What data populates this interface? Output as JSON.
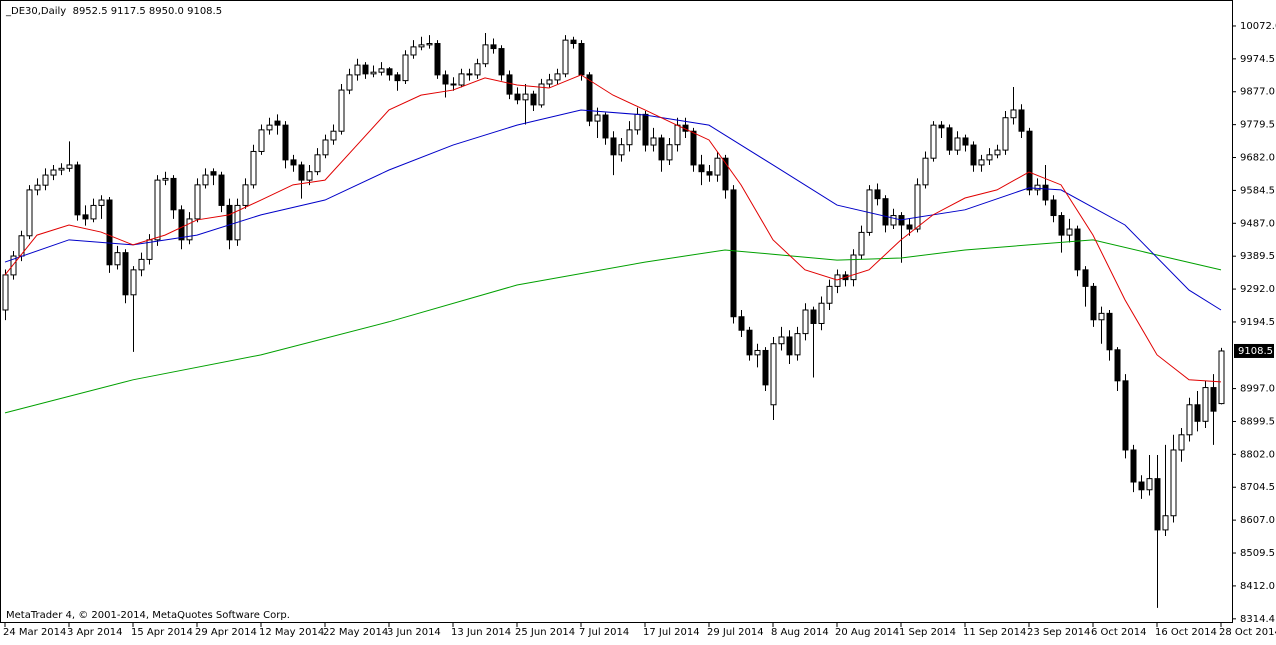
{
  "chart_data": {
    "type": "candlestick",
    "header": "_DE30,Daily  8952.5 9117.5 8950.0 9108.5",
    "footer": "MetaTrader 4, © 2001-2014, MetaQuotes Software Corp.",
    "ylim": [
      8305,
      10149
    ],
    "yticks": [
      {
        "value": 10072,
        "label": "10072.0"
      },
      9974.5,
      {
        "value": 9877,
        "label": "9877.0"
      },
      9779.5,
      {
        "value": 9682,
        "label": "9682.0"
      },
      9584.5,
      {
        "value": 9487,
        "label": "9487.0"
      },
      9389.5,
      {
        "value": 9292,
        "label": "9292.0"
      },
      9194.5,
      {
        "value": 8997,
        "label": "8997.0"
      },
      8899.5,
      {
        "value": 8802,
        "label": "8802.0"
      },
      8704.5,
      {
        "value": 8607,
        "label": "8607.0"
      },
      8509.5,
      {
        "value": 8412,
        "label": "8412.0"
      },
      8314.4
    ],
    "x_labels": [
      "24 Mar 2014",
      "3 Apr 2014",
      "15 Apr 2014",
      "29 Apr 2014",
      "12 May 2014",
      "22 May 2014",
      "3 Jun 2014",
      "13 Jun 2014",
      "25 Jun 2014",
      "7 Jul 2014",
      "17 Jul 2014",
      "29 Jul 2014",
      "8 Aug 2014",
      "20 Aug 2014",
      "1 Sep 2014",
      "11 Sep 2014",
      "23 Sep 2014",
      "6 Oct 2014",
      "16 Oct 2014",
      "28 Oct 2014"
    ],
    "candles": [
      [
        9230,
        9350,
        9200,
        9334
      ],
      [
        9334,
        9405,
        9320,
        9390
      ],
      [
        9390,
        9465,
        9375,
        9450
      ],
      [
        9450,
        9600,
        9440,
        9586
      ],
      [
        9586,
        9620,
        9570,
        9600
      ],
      [
        9600,
        9650,
        9585,
        9630
      ],
      [
        9630,
        9660,
        9615,
        9645
      ],
      [
        9645,
        9665,
        9630,
        9650
      ],
      [
        9650,
        9730,
        9640,
        9660
      ],
      [
        9660,
        9670,
        9495,
        9512
      ],
      [
        9512,
        9540,
        9480,
        9500
      ],
      [
        9500,
        9560,
        9490,
        9540
      ],
      [
        9540,
        9570,
        9500,
        9556
      ],
      [
        9556,
        9565,
        9340,
        9364
      ],
      [
        9364,
        9420,
        9350,
        9400
      ],
      [
        9400,
        9410,
        9250,
        9275
      ],
      [
        9275,
        9360,
        9106,
        9349
      ],
      [
        9349,
        9400,
        9330,
        9380
      ],
      [
        9380,
        9455,
        9365,
        9438
      ],
      [
        9438,
        9630,
        9420,
        9615
      ],
      [
        9615,
        9640,
        9600,
        9620
      ],
      [
        9620,
        9630,
        9500,
        9527
      ],
      [
        9527,
        9540,
        9410,
        9438
      ],
      [
        9438,
        9520,
        9425,
        9500
      ],
      [
        9500,
        9620,
        9490,
        9601
      ],
      [
        9601,
        9650,
        9590,
        9630
      ],
      [
        9640,
        9650,
        9600,
        9630
      ],
      [
        9630,
        9640,
        9520,
        9540
      ],
      [
        9540,
        9560,
        9410,
        9438
      ],
      [
        9438,
        9560,
        9420,
        9540
      ],
      [
        9540,
        9620,
        9530,
        9601
      ],
      [
        9601,
        9720,
        9590,
        9700
      ],
      [
        9700,
        9780,
        9690,
        9764
      ],
      [
        9764,
        9800,
        9750,
        9778
      ],
      [
        9790,
        9810,
        9750,
        9778
      ],
      [
        9778,
        9790,
        9650,
        9675
      ],
      [
        9675,
        9690,
        9640,
        9660
      ],
      [
        9660,
        9670,
        9560,
        9615
      ],
      [
        9615,
        9660,
        9600,
        9640
      ],
      [
        9640,
        9710,
        9630,
        9690
      ],
      [
        9690,
        9750,
        9680,
        9734
      ],
      [
        9734,
        9780,
        9720,
        9760
      ],
      [
        9760,
        9900,
        9750,
        9882
      ],
      [
        9882,
        9945,
        9870,
        9927
      ],
      [
        9927,
        9975,
        9910,
        9956
      ],
      [
        9956,
        9965,
        9915,
        9930
      ],
      [
        9930,
        9955,
        9920,
        9935
      ],
      [
        9935,
        9965,
        9925,
        9945
      ],
      [
        9945,
        9950,
        9910,
        9927
      ],
      [
        9927,
        9935,
        9880,
        9910
      ],
      [
        9910,
        10000,
        9900,
        9986
      ],
      [
        9986,
        10030,
        9975,
        10010
      ],
      [
        10010,
        10040,
        10000,
        10016
      ],
      [
        10016,
        10045,
        10005,
        10020
      ],
      [
        10020,
        10030,
        9915,
        9927
      ],
      [
        9927,
        9940,
        9860,
        9900
      ],
      [
        9900,
        9920,
        9880,
        9897
      ],
      [
        9897,
        9945,
        9890,
        9930
      ],
      [
        9930,
        9945,
        9910,
        9927
      ],
      [
        9927,
        9975,
        9915,
        9960
      ],
      [
        9960,
        10051,
        9950,
        10016
      ],
      [
        10016,
        10035,
        9990,
        10005
      ],
      [
        10005,
        10015,
        9910,
        9927
      ],
      [
        9927,
        9940,
        9855,
        9870
      ],
      [
        9870,
        9890,
        9840,
        9853
      ],
      [
        9853,
        9900,
        9780,
        9870
      ],
      [
        9870,
        9880,
        9820,
        9838
      ],
      [
        9838,
        9915,
        9830,
        9900
      ],
      [
        9900,
        9930,
        9890,
        9912
      ],
      [
        9912,
        9945,
        9900,
        9930
      ],
      [
        9930,
        10045,
        9920,
        10030
      ],
      [
        10030,
        10040,
        10005,
        10020
      ],
      [
        10020,
        10030,
        9910,
        9927
      ],
      [
        9927,
        9935,
        9775,
        9790
      ],
      [
        9790,
        9830,
        9740,
        9808
      ],
      [
        9808,
        9815,
        9720,
        9740
      ],
      [
        9740,
        9760,
        9630,
        9690
      ],
      [
        9690,
        9740,
        9670,
        9720
      ],
      [
        9720,
        9790,
        9700,
        9764
      ],
      [
        9764,
        9830,
        9750,
        9810
      ],
      [
        9810,
        9820,
        9700,
        9719
      ],
      [
        9719,
        9770,
        9700,
        9740
      ],
      [
        9740,
        9750,
        9640,
        9675
      ],
      [
        9675,
        9740,
        9660,
        9720
      ],
      [
        9720,
        9800,
        9700,
        9778
      ],
      [
        9778,
        9800,
        9740,
        9760
      ],
      [
        9760,
        9770,
        9640,
        9660
      ],
      [
        9660,
        9690,
        9600,
        9640
      ],
      [
        9640,
        9660,
        9610,
        9630
      ],
      [
        9630,
        9700,
        9610,
        9680
      ],
      [
        9680,
        9690,
        9560,
        9586
      ],
      [
        9586,
        9600,
        9190,
        9210
      ],
      [
        9210,
        9230,
        9150,
        9170
      ],
      [
        9170,
        9180,
        9080,
        9097
      ],
      [
        9097,
        9130,
        9060,
        9110
      ],
      [
        9110,
        9120,
        8990,
        9008
      ],
      [
        8949,
        9150,
        8904,
        9130
      ],
      [
        9130,
        9180,
        9110,
        9150
      ],
      [
        9150,
        9170,
        9070,
        9097
      ],
      [
        9097,
        9180,
        9080,
        9160
      ],
      [
        9160,
        9250,
        9140,
        9230
      ],
      [
        9230,
        9240,
        9030,
        9190
      ],
      [
        9190,
        9270,
        9170,
        9250
      ],
      [
        9250,
        9320,
        9230,
        9300
      ],
      [
        9300,
        9350,
        9280,
        9334
      ],
      [
        9334,
        9345,
        9300,
        9320
      ],
      [
        9320,
        9410,
        9300,
        9393
      ],
      [
        9393,
        9480,
        9380,
        9460
      ],
      [
        9460,
        9600,
        9450,
        9586
      ],
      [
        9586,
        9605,
        9540,
        9560
      ],
      [
        9560,
        9570,
        9460,
        9482
      ],
      [
        9482,
        9530,
        9470,
        9510
      ],
      [
        9510,
        9520,
        9370,
        9482
      ],
      [
        9482,
        9500,
        9450,
        9470
      ],
      [
        9470,
        9620,
        9460,
        9601
      ],
      [
        9601,
        9700,
        9590,
        9680
      ],
      [
        9680,
        9790,
        9670,
        9778
      ],
      [
        9778,
        9790,
        9740,
        9770
      ],
      [
        9770,
        9780,
        9690,
        9704
      ],
      [
        9704,
        9760,
        9690,
        9740
      ],
      [
        9740,
        9750,
        9700,
        9719
      ],
      [
        9719,
        9730,
        9640,
        9660
      ],
      [
        9660,
        9690,
        9640,
        9675
      ],
      [
        9675,
        9710,
        9660,
        9690
      ],
      [
        9690,
        9720,
        9680,
        9704
      ],
      [
        9704,
        9820,
        9690,
        9800
      ],
      [
        9800,
        9891,
        9780,
        9823
      ],
      [
        9823,
        9840,
        9740,
        9760
      ],
      [
        9760,
        9770,
        9570,
        9586
      ],
      [
        9586,
        9620,
        9570,
        9600
      ],
      [
        9600,
        9660,
        9540,
        9556
      ],
      [
        9556,
        9570,
        9490,
        9510
      ],
      [
        9510,
        9520,
        9400,
        9452
      ],
      [
        9452,
        9500,
        9430,
        9470
      ],
      [
        9470,
        9480,
        9330,
        9349
      ],
      [
        9349,
        9360,
        9240,
        9300
      ],
      [
        9300,
        9310,
        9180,
        9201
      ],
      [
        9201,
        9240,
        9130,
        9220
      ],
      [
        9220,
        9230,
        9080,
        9112
      ],
      [
        9112,
        9120,
        8990,
        9020
      ],
      [
        9020,
        9040,
        8790,
        8815
      ],
      [
        8815,
        8830,
        8690,
        8720
      ],
      [
        8720,
        8740,
        8670,
        8697
      ],
      [
        8697,
        8800,
        8680,
        8730
      ],
      [
        8730,
        8800,
        8347,
        8578
      ],
      [
        8578,
        8830,
        8560,
        8620
      ],
      [
        8620,
        8860,
        8600,
        8815
      ],
      [
        8815,
        8880,
        8780,
        8860
      ],
      [
        8860,
        8970,
        8840,
        8949
      ],
      [
        8949,
        8990,
        8870,
        8900
      ],
      [
        8900,
        9020,
        8880,
        9000
      ],
      [
        9000,
        9040,
        8830,
        8930
      ],
      [
        8952.5,
        9117.5,
        8950,
        9108.5
      ]
    ],
    "series": [
      {
        "color": "#00a000",
        "x": [
          0,
          16,
          32,
          48,
          64,
          80,
          90,
          104,
          112,
          120,
          136,
          144,
          152
        ],
        "values": [
          8925,
          9023,
          9097,
          9195,
          9304,
          9372,
          9408,
          9378,
          9384,
          9408,
          9438,
          9393,
          9349
        ]
      },
      {
        "color": "#0000c8",
        "x": [
          0,
          8,
          16,
          24,
          32,
          40,
          48,
          56,
          64,
          72,
          80,
          88,
          96,
          104,
          112,
          120,
          128,
          132,
          140,
          148,
          152
        ],
        "values": [
          9372,
          9438,
          9423,
          9452,
          9512,
          9556,
          9645,
          9719,
          9778,
          9823,
          9808,
          9778,
          9660,
          9541,
          9497,
          9527,
          9592,
          9586,
          9482,
          9289,
          9230
        ]
      },
      {
        "color": "#e00000",
        "x": [
          0,
          4,
          8,
          12,
          16,
          20,
          24,
          28,
          32,
          36,
          40,
          44,
          48,
          52,
          56,
          60,
          64,
          68,
          72,
          76,
          80,
          84,
          88,
          92,
          96,
          100,
          104,
          108,
          112,
          116,
          120,
          124,
          128,
          132,
          136,
          140,
          144,
          148,
          152
        ],
        "values": [
          9334,
          9452,
          9482,
          9461,
          9423,
          9452,
          9497,
          9512,
          9556,
          9601,
          9615,
          9719,
          9823,
          9867,
          9882,
          9918,
          9897,
          9888,
          9927,
          9867,
          9823,
          9778,
          9734,
          9601,
          9438,
          9349,
          9319,
          9349,
          9438,
          9512,
          9562,
          9586,
          9639,
          9601,
          9452,
          9260,
          9097,
          9023,
          9017
        ]
      }
    ]
  }
}
